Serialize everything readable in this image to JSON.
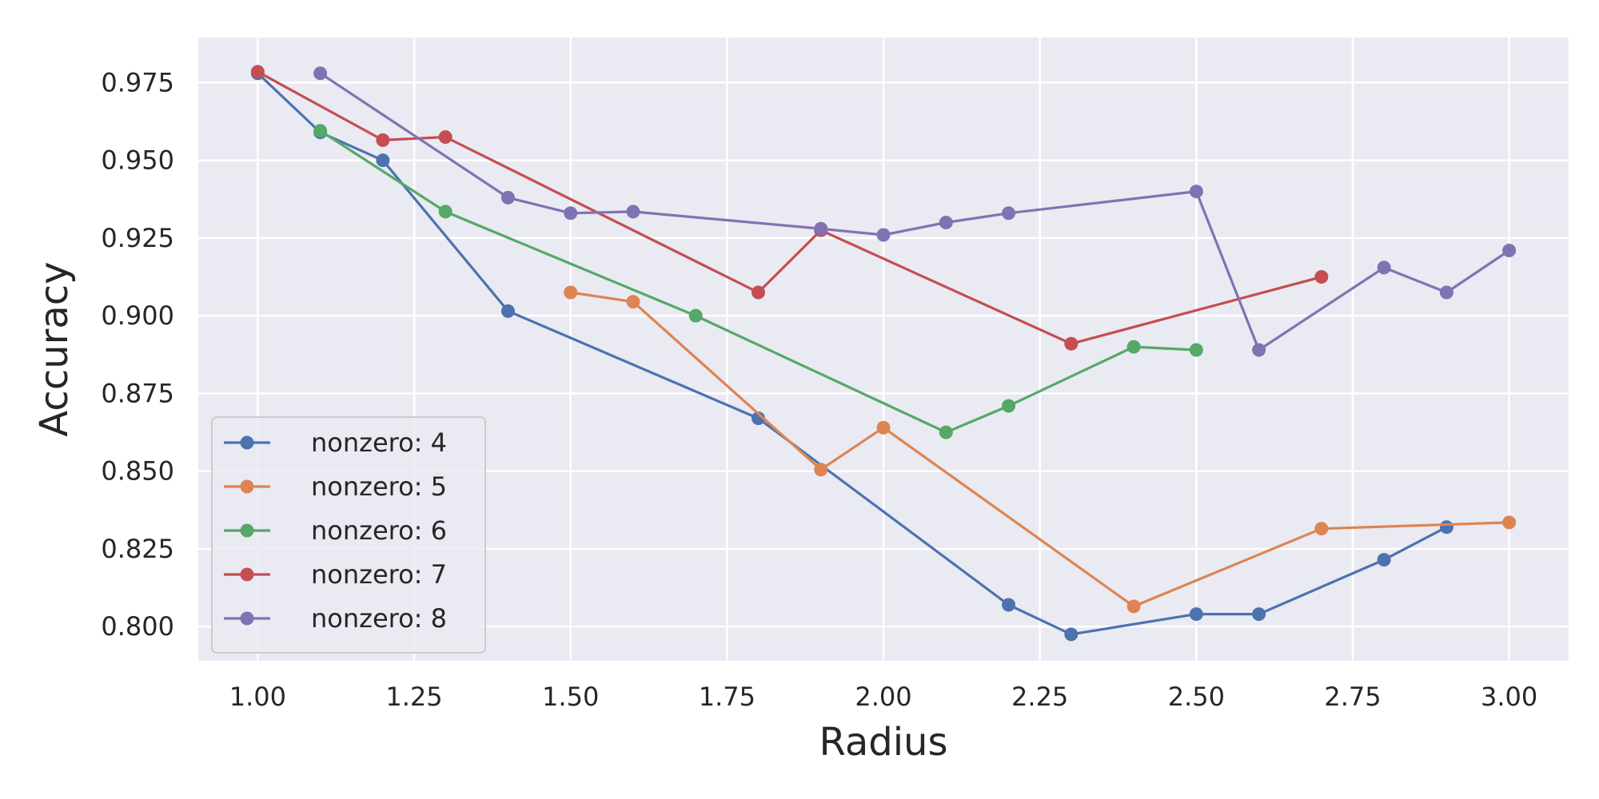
{
  "chart_data": {
    "type": "line",
    "title": "",
    "xlabel": "Radius",
    "ylabel": "Accuracy",
    "xlim": [
      0.905,
      3.095
    ],
    "ylim": [
      0.789,
      0.9895
    ],
    "xticks": [
      1.0,
      1.25,
      1.5,
      1.75,
      2.0,
      2.25,
      2.5,
      2.75,
      3.0
    ],
    "xtick_labels": [
      "1.00",
      "1.25",
      "1.50",
      "1.75",
      "2.00",
      "2.25",
      "2.50",
      "2.75",
      "3.00"
    ],
    "yticks": [
      0.8,
      0.825,
      0.85,
      0.875,
      0.9,
      0.925,
      0.95,
      0.975
    ],
    "ytick_labels": [
      "0.800",
      "0.825",
      "0.850",
      "0.875",
      "0.900",
      "0.925",
      "0.950",
      "0.975"
    ],
    "grid": true,
    "legend_position": "lower-left",
    "background_color": "#eaeaf2",
    "series": [
      {
        "name": "nonzero: 4",
        "color": "#4c72b0",
        "x": [
          1.0,
          1.1,
          1.2,
          1.4,
          1.8,
          2.2,
          2.3,
          2.5,
          2.6,
          2.8,
          2.9
        ],
        "y": [
          0.978,
          0.959,
          0.95,
          0.9015,
          0.867,
          0.807,
          0.7975,
          0.804,
          0.804,
          0.8215,
          0.832
        ]
      },
      {
        "name": "nonzero: 5",
        "color": "#dd8452",
        "x": [
          1.5,
          1.6,
          1.9,
          2.0,
          2.4,
          2.7,
          3.0
        ],
        "y": [
          0.9075,
          0.9045,
          0.8505,
          0.864,
          0.8065,
          0.8315,
          0.8335
        ]
      },
      {
        "name": "nonzero: 6",
        "color": "#55a868",
        "x": [
          1.1,
          1.3,
          1.7,
          2.1,
          2.2,
          2.4,
          2.5
        ],
        "y": [
          0.9595,
          0.9335,
          0.9,
          0.8625,
          0.871,
          0.89,
          0.889
        ]
      },
      {
        "name": "nonzero: 7",
        "color": "#c44e52",
        "x": [
          1.0,
          1.2,
          1.3,
          1.8,
          1.9,
          2.3,
          2.7
        ],
        "y": [
          0.9785,
          0.9565,
          0.9575,
          0.9075,
          0.9275,
          0.891,
          0.9125
        ]
      },
      {
        "name": "nonzero: 8",
        "color": "#8172b3",
        "x": [
          1.1,
          1.4,
          1.5,
          1.6,
          1.9,
          2.0,
          2.1,
          2.2,
          2.5,
          2.6,
          2.8,
          2.9,
          3.0
        ],
        "y": [
          0.978,
          0.938,
          0.933,
          0.9335,
          0.928,
          0.926,
          0.93,
          0.933,
          0.94,
          0.889,
          0.9155,
          0.9075,
          0.921
        ]
      }
    ]
  }
}
